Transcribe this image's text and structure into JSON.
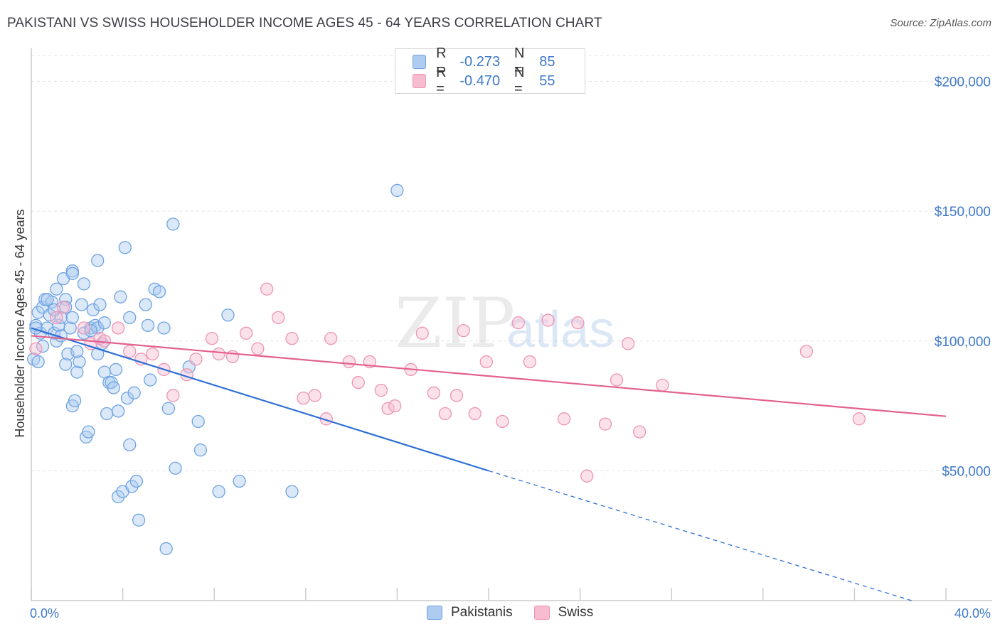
{
  "header": {
    "title": "PAKISTANI VS SWISS HOUSEHOLDER INCOME AGES 45 - 64 YEARS CORRELATION CHART",
    "source": "Source: ZipAtlas.com"
  },
  "legend": {
    "rows": [
      {
        "r_label": "R =",
        "r_value": "-0.273",
        "n_label": "N =",
        "n_value": "85",
        "color": "#aecbf0"
      },
      {
        "r_label": "R =",
        "r_value": "-0.470",
        "n_label": "N =",
        "n_value": "55",
        "color": "#f7bcd0"
      }
    ]
  },
  "bottom_legend": [
    {
      "label": "Pakistanis",
      "color": "#aecbf0"
    },
    {
      "label": "Swiss",
      "color": "#f7bcd0"
    }
  ],
  "watermark": {
    "zip": "ZIP",
    "atlas": "atlas"
  },
  "chart_data": {
    "type": "scatter",
    "xlabel": "",
    "ylabel": "Householder Income Ages 45 - 64 years",
    "xlim": [
      0,
      40
    ],
    "ylim": [
      0,
      210000
    ],
    "x_tick_labels": [
      {
        "value": 0,
        "label": "0.0%"
      },
      {
        "value": 40,
        "label": "40.0%"
      }
    ],
    "y_tick_labels": [
      {
        "value": 50000,
        "label": "$50,000"
      },
      {
        "value": 100000,
        "label": "$100,000"
      },
      {
        "value": 150000,
        "label": "$150,000"
      },
      {
        "value": 200000,
        "label": "$200,000"
      }
    ],
    "grid": true,
    "series": [
      {
        "name": "Pakistanis",
        "color": "#6ea3e3",
        "fill": "#aecbf0",
        "trend": {
          "x": [
            0,
            20,
            38.5
          ],
          "y": [
            105000,
            50000,
            0
          ],
          "solid_until": 20,
          "color": "#2e6fd6"
        },
        "points": [
          [
            0.1,
            93000
          ],
          [
            0.2,
            106000
          ],
          [
            0.3,
            111000
          ],
          [
            0.4,
            103000
          ],
          [
            0.5,
            113000
          ],
          [
            0.6,
            116000
          ],
          [
            0.7,
            105000
          ],
          [
            0.8,
            110000
          ],
          [
            0.9,
            115000
          ],
          [
            1.0,
            103000
          ],
          [
            1.1,
            100000
          ],
          [
            1.1,
            120000
          ],
          [
            1.2,
            106000
          ],
          [
            1.3,
            109000
          ],
          [
            1.4,
            124000
          ],
          [
            1.5,
            116000
          ],
          [
            1.5,
            91000
          ],
          [
            1.6,
            95000
          ],
          [
            1.7,
            105000
          ],
          [
            1.8,
            109000
          ],
          [
            1.8,
            75000
          ],
          [
            1.9,
            77000
          ],
          [
            2.0,
            88000
          ],
          [
            2.1,
            92000
          ],
          [
            2.2,
            114000
          ],
          [
            2.3,
            122000
          ],
          [
            2.3,
            103000
          ],
          [
            2.4,
            63000
          ],
          [
            2.5,
            65000
          ],
          [
            2.6,
            105000
          ],
          [
            2.7,
            112000
          ],
          [
            1.8,
            127000
          ],
          [
            1.8,
            126000
          ],
          [
            2.8,
            106000
          ],
          [
            2.9,
            95000
          ],
          [
            2.9,
            105000
          ],
          [
            2.9,
            131000
          ],
          [
            3.0,
            114000
          ],
          [
            3.1,
            99000
          ],
          [
            3.2,
            107000
          ],
          [
            3.2,
            88000
          ],
          [
            3.3,
            72000
          ],
          [
            3.4,
            84000
          ],
          [
            3.5,
            84000
          ],
          [
            3.6,
            82000
          ],
          [
            3.7,
            89000
          ],
          [
            3.8,
            73000
          ],
          [
            3.8,
            40000
          ],
          [
            3.9,
            117000
          ],
          [
            4.0,
            42000
          ],
          [
            4.1,
            136000
          ],
          [
            4.2,
            78000
          ],
          [
            4.3,
            60000
          ],
          [
            4.3,
            109000
          ],
          [
            4.4,
            44000
          ],
          [
            4.5,
            80000
          ],
          [
            4.6,
            46000
          ],
          [
            4.7,
            31000
          ],
          [
            5.0,
            114000
          ],
          [
            5.1,
            106000
          ],
          [
            5.2,
            85000
          ],
          [
            5.4,
            120000
          ],
          [
            5.6,
            119000
          ],
          [
            5.8,
            105000
          ],
          [
            5.9,
            20000
          ],
          [
            6.0,
            74000
          ],
          [
            6.2,
            145000
          ],
          [
            6.3,
            51000
          ],
          [
            6.9,
            90000
          ],
          [
            7.3,
            69000
          ],
          [
            7.4,
            58000
          ],
          [
            8.2,
            42000
          ],
          [
            8.6,
            110000
          ],
          [
            9.1,
            46000
          ],
          [
            11.4,
            42000
          ],
          [
            16.0,
            158000
          ],
          [
            0.2,
            105000
          ],
          [
            0.7,
            116000
          ],
          [
            1.3,
            102000
          ],
          [
            2.6,
            104000
          ],
          [
            1.5,
            113000
          ],
          [
            1.0,
            112000
          ],
          [
            0.5,
            98000
          ],
          [
            2.0,
            96000
          ],
          [
            0.3,
            92000
          ]
        ]
      },
      {
        "name": "Swiss",
        "color": "#ee94b5",
        "fill": "#f7bcd0",
        "trend": {
          "x": [
            0,
            40
          ],
          "y": [
            102000,
            71000
          ],
          "solid_until": 40,
          "color": "#e4608f"
        },
        "points": [
          [
            0.2,
            97000
          ],
          [
            1.1,
            109000
          ],
          [
            1.4,
            113000
          ],
          [
            2.3,
            105000
          ],
          [
            2.6,
            99000
          ],
          [
            3.0,
            101000
          ],
          [
            3.2,
            100000
          ],
          [
            3.8,
            105000
          ],
          [
            4.3,
            96000
          ],
          [
            4.8,
            93000
          ],
          [
            5.3,
            95000
          ],
          [
            5.8,
            89000
          ],
          [
            6.2,
            79000
          ],
          [
            6.8,
            87000
          ],
          [
            7.2,
            93000
          ],
          [
            7.9,
            101000
          ],
          [
            8.2,
            95000
          ],
          [
            8.8,
            94000
          ],
          [
            9.4,
            103000
          ],
          [
            9.9,
            97000
          ],
          [
            10.3,
            120000
          ],
          [
            10.8,
            109000
          ],
          [
            11.4,
            101000
          ],
          [
            11.9,
            78000
          ],
          [
            12.4,
            79000
          ],
          [
            12.9,
            70000
          ],
          [
            13.1,
            101000
          ],
          [
            13.9,
            92000
          ],
          [
            14.3,
            84000
          ],
          [
            14.8,
            92000
          ],
          [
            15.3,
            81000
          ],
          [
            15.6,
            74000
          ],
          [
            15.9,
            75000
          ],
          [
            16.6,
            89000
          ],
          [
            17.1,
            103000
          ],
          [
            17.6,
            80000
          ],
          [
            18.1,
            72000
          ],
          [
            18.6,
            79000
          ],
          [
            18.9,
            104000
          ],
          [
            19.4,
            72000
          ],
          [
            19.9,
            92000
          ],
          [
            20.6,
            69000
          ],
          [
            21.3,
            107000
          ],
          [
            21.8,
            92000
          ],
          [
            22.6,
            108000
          ],
          [
            23.3,
            70000
          ],
          [
            23.9,
            107000
          ],
          [
            24.3,
            48000
          ],
          [
            25.1,
            68000
          ],
          [
            25.6,
            85000
          ],
          [
            26.1,
            99000
          ],
          [
            26.6,
            65000
          ],
          [
            27.6,
            83000
          ],
          [
            33.9,
            96000
          ],
          [
            36.2,
            70000
          ]
        ]
      }
    ]
  }
}
